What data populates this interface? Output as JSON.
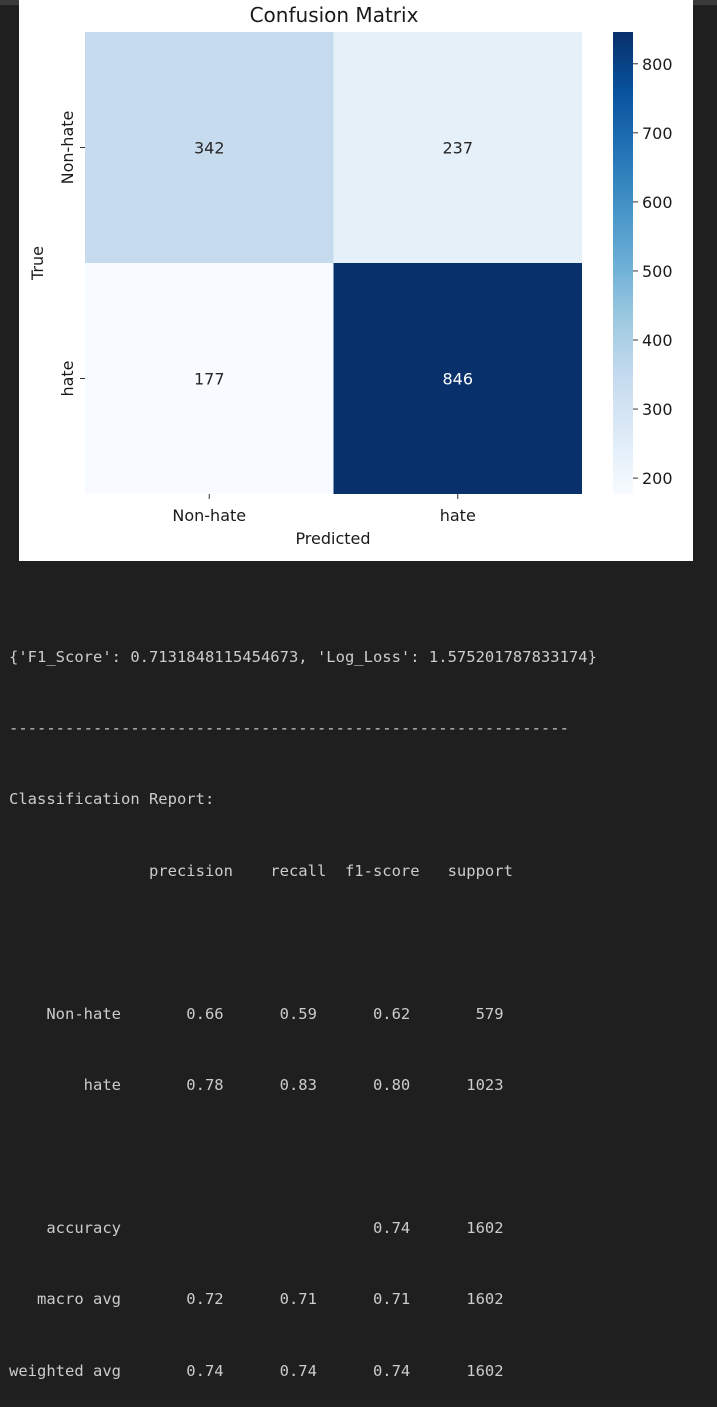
{
  "chart_data": {
    "type": "heatmap",
    "title": "Confusion Matrix",
    "xlabel": "Predicted",
    "ylabel": "True",
    "x_categories": [
      "Non-hate",
      "hate"
    ],
    "y_categories": [
      "Non-hate",
      "hate"
    ],
    "values": [
      [
        342,
        237
      ],
      [
        177,
        846
      ]
    ],
    "colormap": "Blues",
    "color_range": [
      177,
      846
    ],
    "colorbar_ticks": [
      800,
      700,
      600,
      500,
      400,
      300,
      200
    ]
  },
  "output": {
    "metrics_line": "{'F1_Score': 0.7131848115454673, 'Log_Loss': 1.575201787833174}",
    "separator": "------------------------------------------------------------",
    "report_title": "Classification Report:",
    "report_header": "               precision    recall  f1-score   support",
    "blank_1": "",
    "row_nonhate": "    Non-hate       0.66      0.59      0.62       579",
    "row_hate": "        hate       0.78      0.83      0.80      1023",
    "blank_2": "",
    "row_accuracy": "    accuracy                           0.74      1602",
    "row_macro": "   macro avg       0.72      0.71      0.71      1602",
    "row_weighted": "weighted avg       0.74      0.74      0.74      1602"
  }
}
